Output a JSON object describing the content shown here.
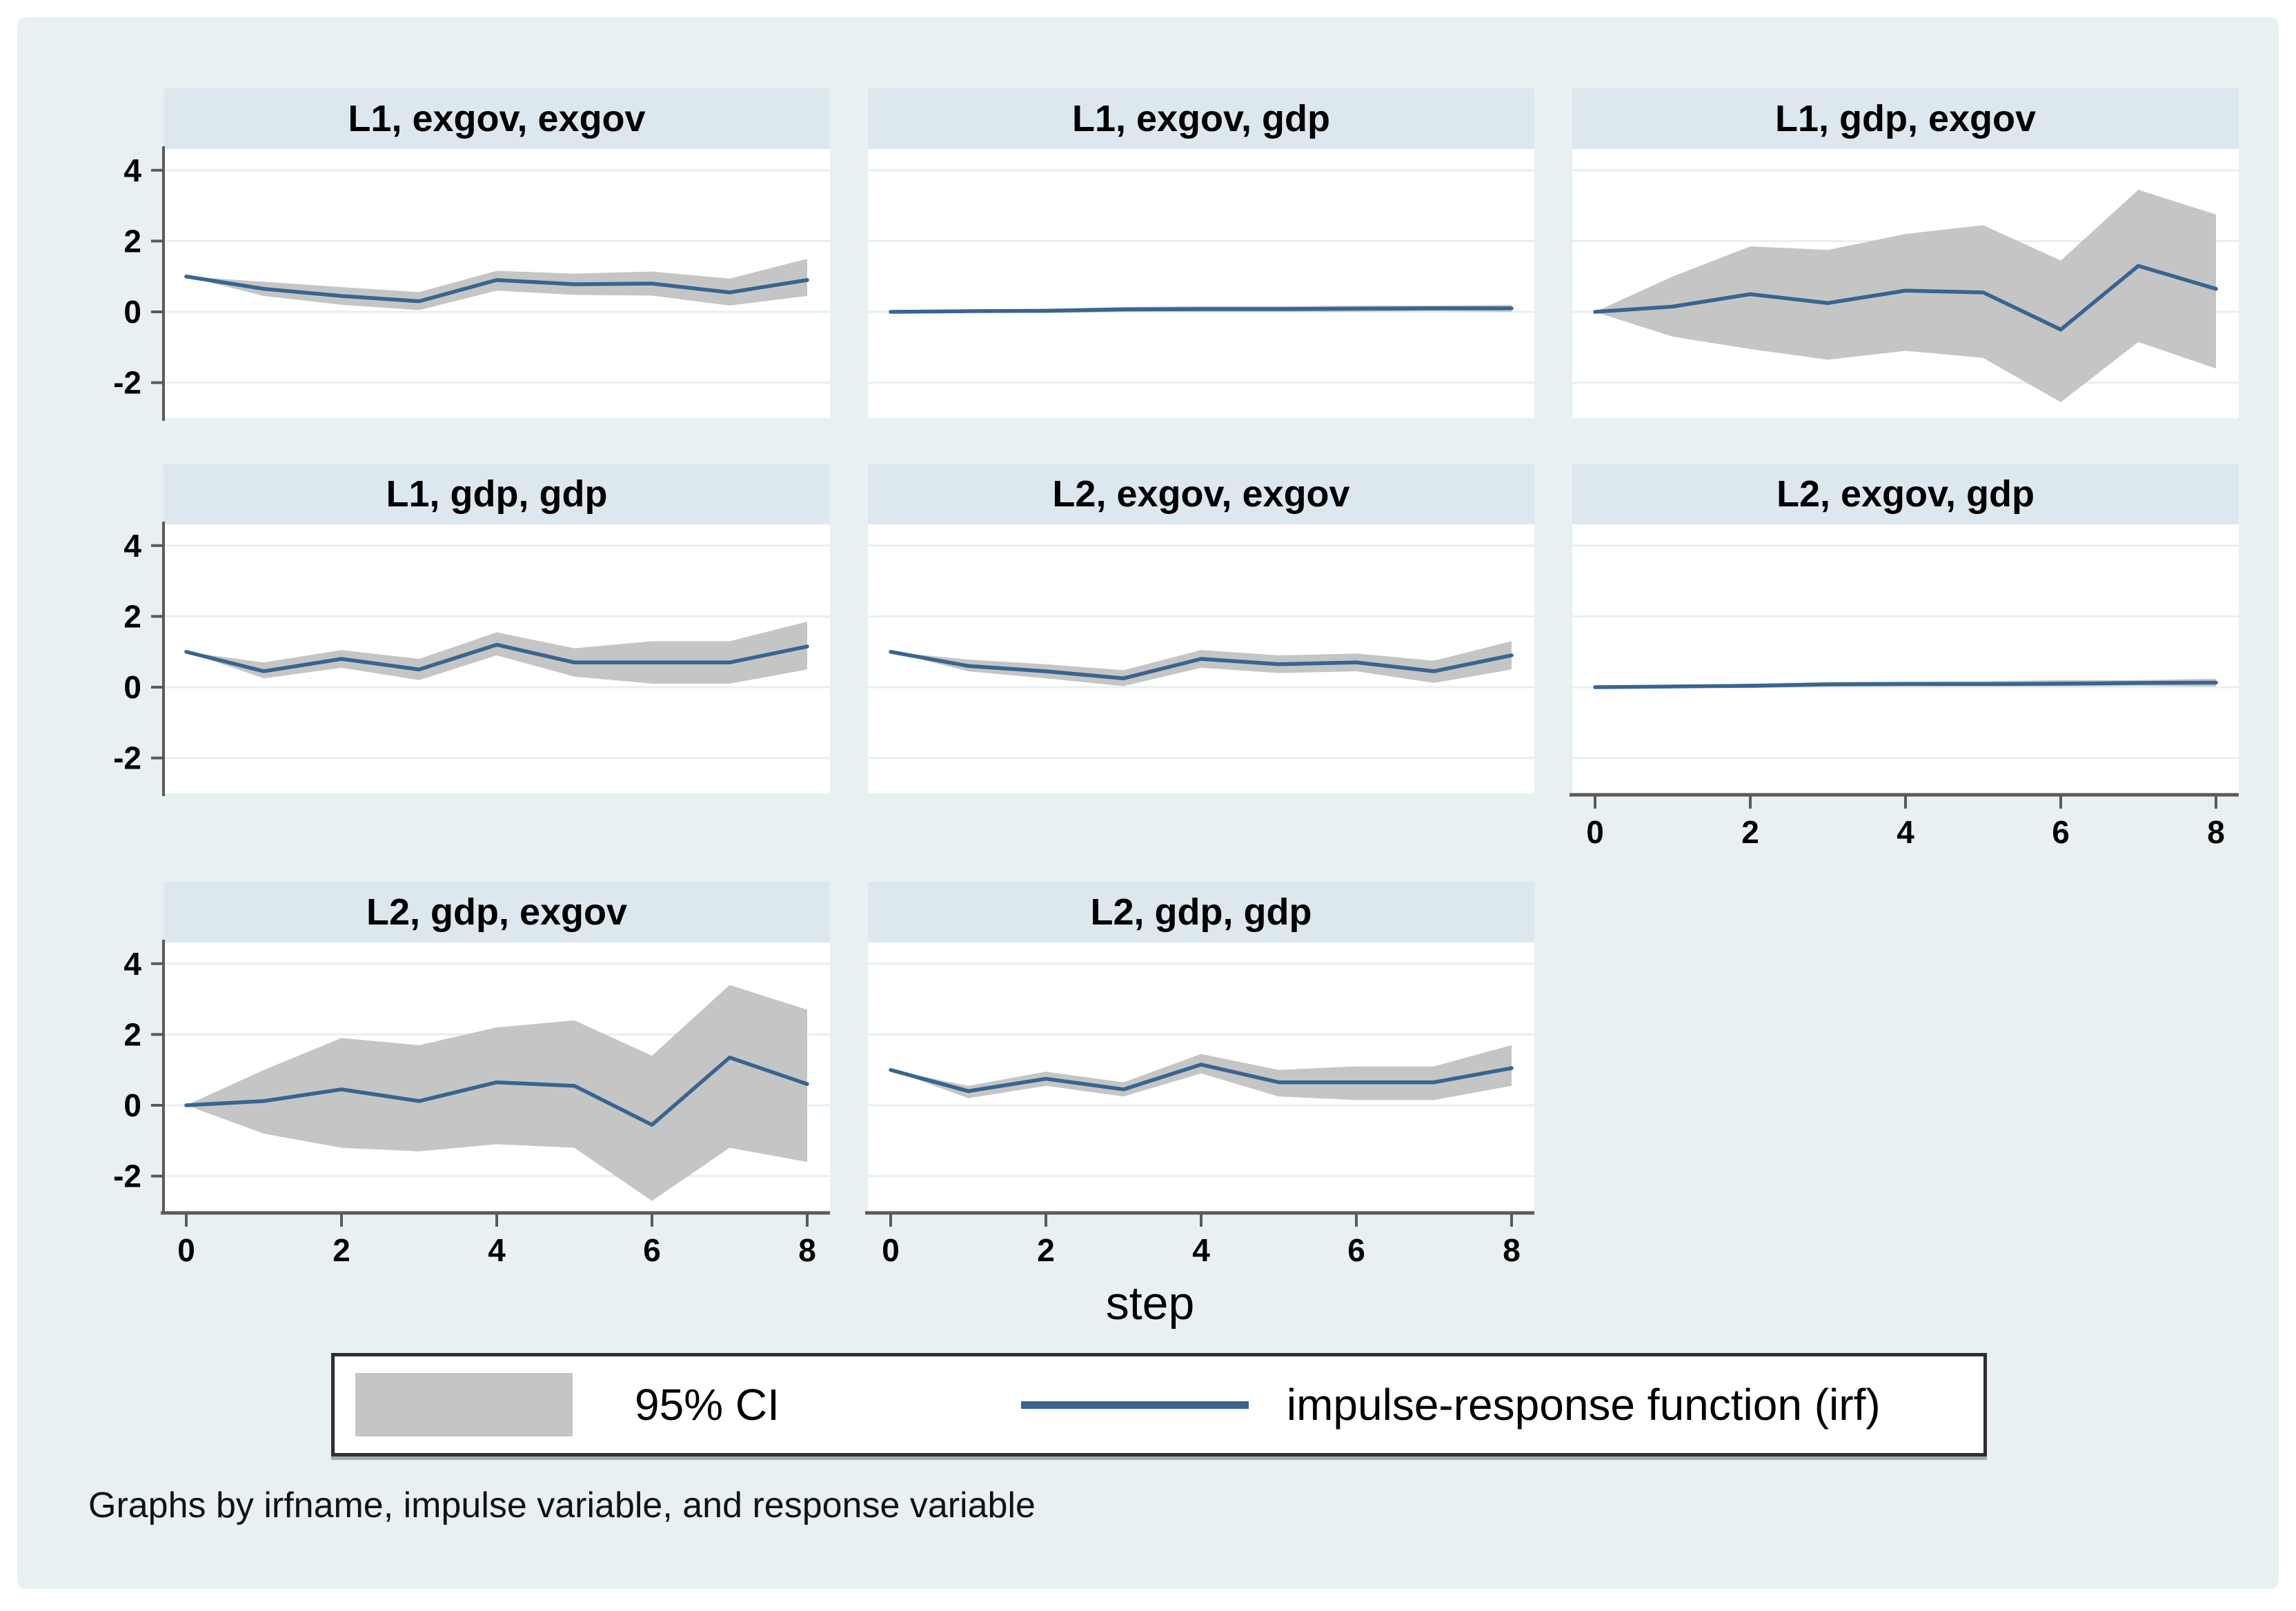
{
  "figure": {
    "caption": "Graphs by irfname, impulse variable, and response variable",
    "legend": {
      "ci_label": "95% CI",
      "irf_label": "impulse-response function (irf)"
    }
  },
  "colors": {
    "figure_bg": "#e9f0f2",
    "panel_title_bg": "#dce8ee",
    "plot_bg": "#ffffff",
    "grid": "#e6eff3",
    "ci_band": "#c5c5c5",
    "irf_line": "#39648f",
    "axis": "#5a5a5a",
    "text": "#000000"
  },
  "chart_data": {
    "type": "line",
    "subtype": "irf-small-multiples-with-ci-band",
    "xlabel": "step",
    "x": [
      0,
      1,
      2,
      3,
      4,
      5,
      6,
      7,
      8
    ],
    "xlim": [
      0,
      8
    ],
    "x_ticks": [
      0,
      2,
      4,
      6,
      8
    ],
    "y_ticks": [
      -2,
      0,
      2,
      4
    ],
    "ylim": [
      -3.0,
      4.6
    ],
    "grid": true,
    "legend_position": "bottom",
    "panels": [
      {
        "title": "L1, exgov, exgov",
        "irf": [
          1.0,
          0.65,
          0.45,
          0.3,
          0.9,
          0.78,
          0.8,
          0.55,
          0.9
        ],
        "ci_lower": [
          1.0,
          0.45,
          0.2,
          0.05,
          0.6,
          0.48,
          0.46,
          0.18,
          0.45
        ],
        "ci_upper": [
          1.0,
          0.85,
          0.7,
          0.56,
          1.16,
          1.08,
          1.14,
          0.94,
          1.5
        ],
        "show_y_axis": true,
        "show_x_axis": false
      },
      {
        "title": "L1, exgov, gdp",
        "irf": [
          0.0,
          0.02,
          0.03,
          0.07,
          0.08,
          0.08,
          0.09,
          0.1,
          0.1
        ],
        "ci_lower": [
          0.0,
          -0.02,
          -0.03,
          0.0,
          0.0,
          0.0,
          0.0,
          0.02,
          0.0
        ],
        "ci_upper": [
          0.0,
          0.06,
          0.09,
          0.14,
          0.16,
          0.16,
          0.18,
          0.18,
          0.2
        ],
        "show_y_axis": false,
        "show_x_axis": false
      },
      {
        "title": "L1, gdp, exgov",
        "irf": [
          0.0,
          0.15,
          0.5,
          0.25,
          0.6,
          0.55,
          -0.5,
          1.3,
          0.65
        ],
        "ci_lower": [
          0.0,
          -0.7,
          -1.05,
          -1.35,
          -1.1,
          -1.3,
          -2.55,
          -0.85,
          -1.6
        ],
        "ci_upper": [
          0.0,
          1.0,
          1.85,
          1.75,
          2.2,
          2.45,
          1.45,
          3.45,
          2.75
        ],
        "show_y_axis": false,
        "show_x_axis": false
      },
      {
        "title": "L1, gdp, gdp",
        "irf": [
          1.0,
          0.45,
          0.8,
          0.5,
          1.2,
          0.7,
          0.7,
          0.7,
          1.15
        ],
        "ci_lower": [
          1.0,
          0.25,
          0.55,
          0.2,
          0.9,
          0.3,
          0.1,
          0.1,
          0.5
        ],
        "ci_upper": [
          1.0,
          0.7,
          1.05,
          0.8,
          1.55,
          1.1,
          1.3,
          1.3,
          1.85
        ],
        "show_y_axis": true,
        "show_x_axis": false
      },
      {
        "title": "L2, exgov, exgov",
        "irf": [
          1.0,
          0.6,
          0.45,
          0.25,
          0.8,
          0.65,
          0.7,
          0.45,
          0.9
        ],
        "ci_lower": [
          1.0,
          0.45,
          0.25,
          0.03,
          0.55,
          0.4,
          0.45,
          0.12,
          0.5
        ],
        "ci_upper": [
          1.0,
          0.78,
          0.65,
          0.48,
          1.05,
          0.9,
          0.95,
          0.75,
          1.3
        ],
        "show_y_axis": false,
        "show_x_axis": false
      },
      {
        "title": "L2, exgov, gdp",
        "irf": [
          0.0,
          0.02,
          0.04,
          0.08,
          0.09,
          0.09,
          0.1,
          0.12,
          0.13
        ],
        "ci_lower": [
          0.0,
          -0.02,
          -0.02,
          0.02,
          0.02,
          0.02,
          0.02,
          0.04,
          0.02
        ],
        "ci_upper": [
          0.0,
          0.06,
          0.1,
          0.15,
          0.16,
          0.17,
          0.2,
          0.2,
          0.24
        ],
        "show_y_axis": false,
        "show_x_axis": true
      },
      {
        "title": "L2, gdp, exgov",
        "irf": [
          0.0,
          0.12,
          0.45,
          0.12,
          0.65,
          0.55,
          -0.55,
          1.35,
          0.6
        ],
        "ci_lower": [
          0.0,
          -0.8,
          -1.2,
          -1.3,
          -1.1,
          -1.2,
          -2.7,
          -1.2,
          -1.6
        ],
        "ci_upper": [
          0.0,
          1.0,
          1.9,
          1.7,
          2.2,
          2.4,
          1.4,
          3.4,
          2.7
        ],
        "show_y_axis": true,
        "show_x_axis": true
      },
      {
        "title": "L2, gdp, gdp",
        "irf": [
          1.0,
          0.4,
          0.75,
          0.45,
          1.15,
          0.65,
          0.65,
          0.65,
          1.05
        ],
        "ci_lower": [
          1.0,
          0.2,
          0.55,
          0.25,
          0.9,
          0.25,
          0.15,
          0.15,
          0.55
        ],
        "ci_upper": [
          1.0,
          0.55,
          0.95,
          0.65,
          1.45,
          1.0,
          1.1,
          1.1,
          1.7
        ],
        "show_y_axis": false,
        "show_x_axis": true
      }
    ]
  }
}
